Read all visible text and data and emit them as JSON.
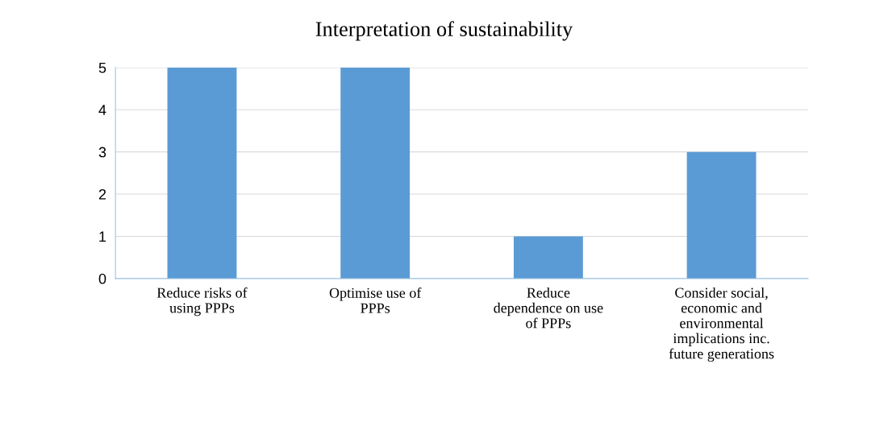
{
  "chart_data": {
    "type": "bar",
    "title": "Interpretation of sustainability",
    "categories": [
      "Reduce risks of\nusing PPPs",
      "Optimise use of\nPPPs",
      "Reduce\ndependence on use\nof PPPs",
      "Consider social,\neconomic and\nenvironmental\nimplications inc.\nfuture generations"
    ],
    "values": [
      5,
      5,
      1,
      3
    ],
    "color": "#5b9bd5",
    "ylim": [
      0,
      5
    ],
    "yticks": [
      0,
      1,
      2,
      3,
      4,
      5
    ],
    "grid": "y"
  }
}
